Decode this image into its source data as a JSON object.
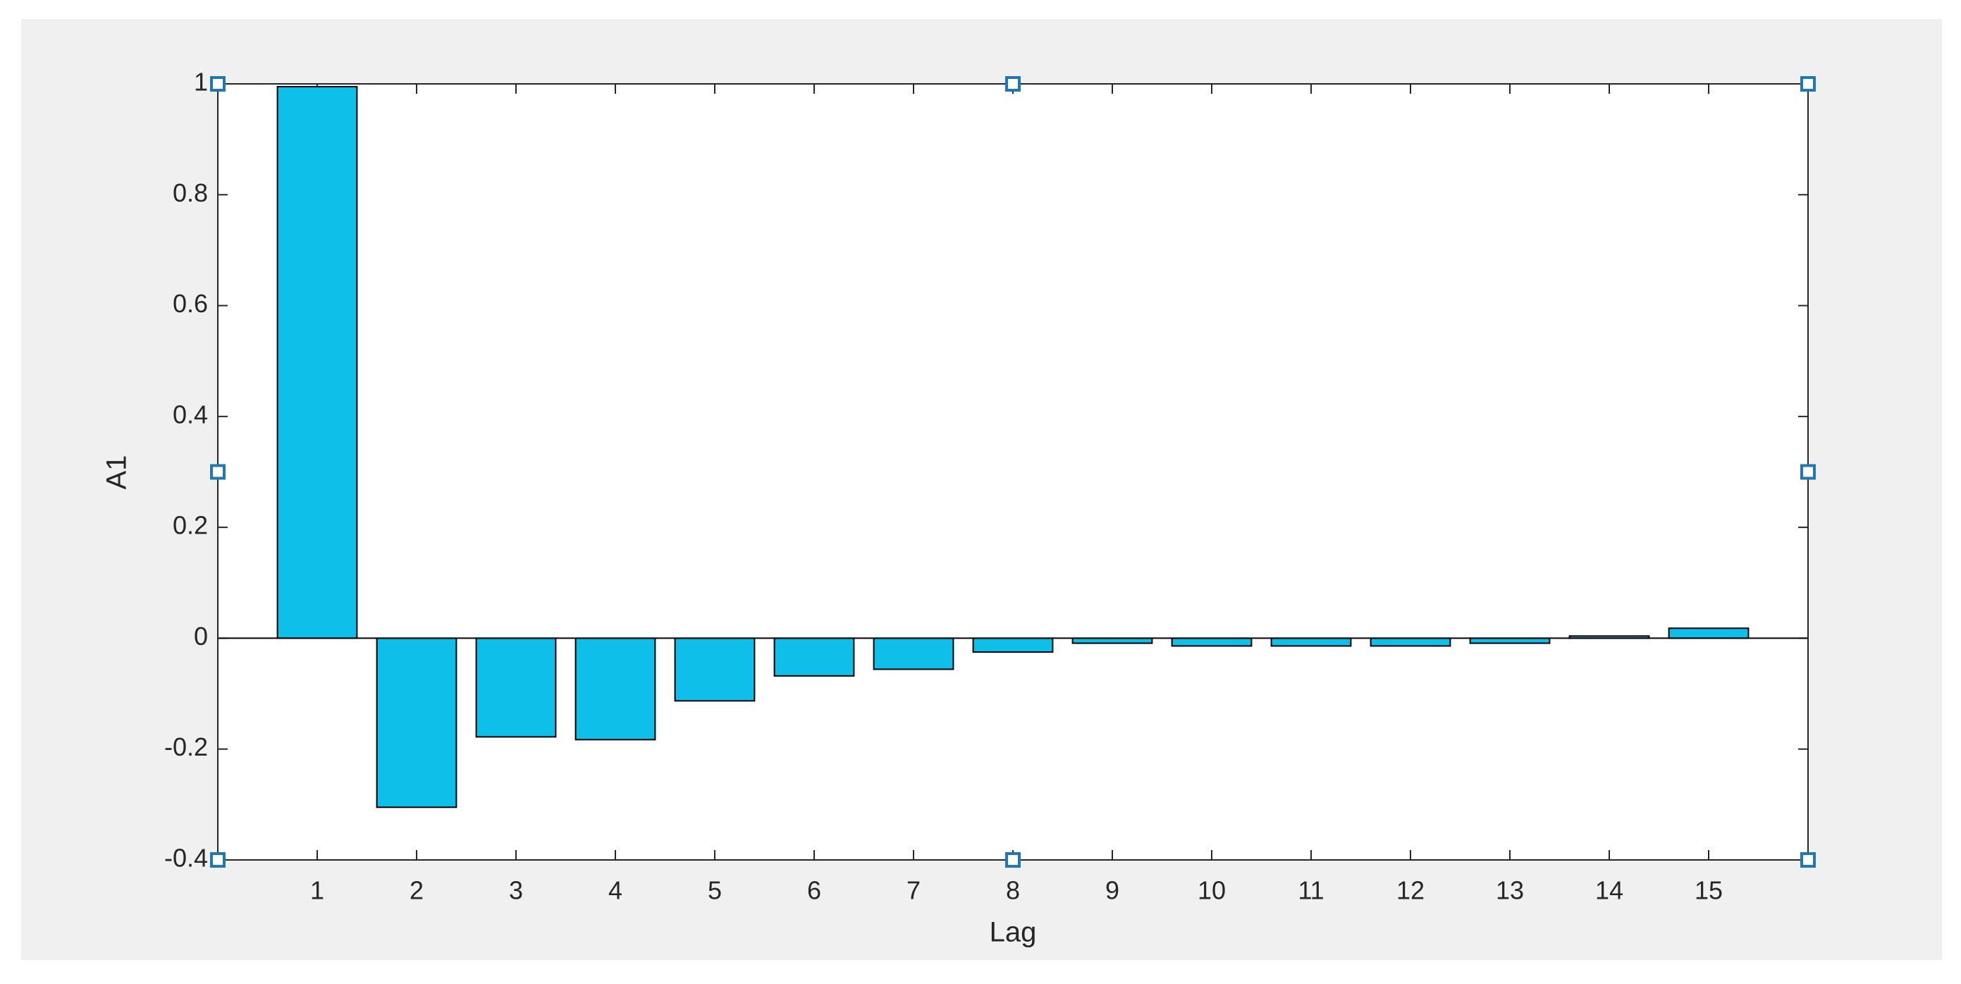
{
  "chart_data": {
    "type": "bar",
    "x": [
      1,
      2,
      3,
      4,
      5,
      6,
      7,
      8,
      9,
      10,
      11,
      12,
      13,
      14,
      15
    ],
    "values": [
      0.995,
      -0.305,
      -0.178,
      -0.183,
      -0.113,
      -0.068,
      -0.056,
      -0.025,
      -0.009,
      -0.014,
      -0.014,
      -0.014,
      -0.009,
      0.004,
      0.018
    ],
    "color": "#0ebfe9",
    "xlim": [
      0,
      16
    ],
    "xticks": [
      1,
      2,
      3,
      4,
      5,
      6,
      7,
      8,
      9,
      10,
      11,
      12,
      13,
      14,
      15
    ],
    "ylim": [
      -0.4,
      1
    ],
    "yticks": [
      -0.4,
      -0.2,
      0,
      0.2,
      0.4,
      0.6,
      0.8,
      1
    ],
    "xlabel": "Lag",
    "ylabel": "A1",
    "grid": false
  }
}
